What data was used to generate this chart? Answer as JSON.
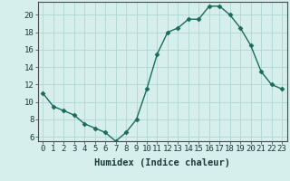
{
  "x": [
    0,
    1,
    2,
    3,
    4,
    5,
    6,
    7,
    8,
    9,
    10,
    11,
    12,
    13,
    14,
    15,
    16,
    17,
    18,
    19,
    20,
    21,
    22,
    23
  ],
  "y": [
    11,
    9.5,
    9,
    8.5,
    7.5,
    7,
    6.5,
    5.5,
    6.5,
    8,
    11.5,
    15.5,
    18,
    18.5,
    19.5,
    19.5,
    21,
    21,
    20,
    18.5,
    16.5,
    13.5,
    12,
    11.5
  ],
  "xlabel": "Humidex (Indice chaleur)",
  "xlim": [
    -0.5,
    23.5
  ],
  "ylim": [
    5.5,
    21.5
  ],
  "yticks": [
    6,
    8,
    10,
    12,
    14,
    16,
    18,
    20
  ],
  "xticks": [
    0,
    1,
    2,
    3,
    4,
    5,
    6,
    7,
    8,
    9,
    10,
    11,
    12,
    13,
    14,
    15,
    16,
    17,
    18,
    19,
    20,
    21,
    22,
    23
  ],
  "line_color": "#1a6b5a",
  "marker": "D",
  "marker_size": 2.5,
  "bg_color": "#d6efed",
  "grid_color": "#afd8d4",
  "xlabel_fontsize": 7.5,
  "tick_fontsize": 6.5,
  "linewidth": 1.0
}
